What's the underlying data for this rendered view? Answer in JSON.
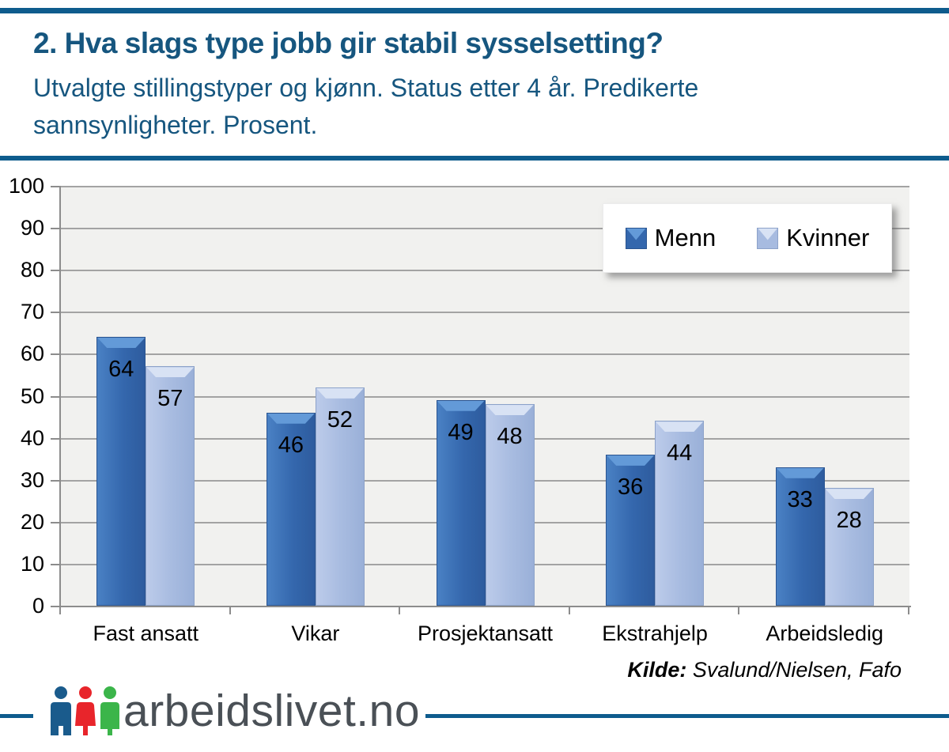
{
  "header": {
    "title": "2. Hva slags type jobb gir stabil sysselsetting?",
    "subtitle_lines": [
      "Utvalgte stillingstyper og kjønn. Status etter 4 år. Predikerte",
      "sannsynligheter. Prosent."
    ]
  },
  "chart_data": {
    "type": "bar",
    "title": "",
    "xlabel": "",
    "ylabel": "",
    "categories": [
      "Fast ansatt",
      "Vikar",
      "Prosjektansatt",
      "Ekstrahjelp",
      "Arbeidsledig"
    ],
    "series": [
      {
        "name": "Menn",
        "values": [
          64,
          46,
          49,
          36,
          33
        ],
        "color": "#3467AD",
        "bevel_color": "#639AD8",
        "edge_color": "#2A5490",
        "gradient_light": "#4A81C4",
        "gradient_dark": "#2E5C9E"
      },
      {
        "name": "Kvinner",
        "values": [
          57,
          52,
          48,
          44,
          28
        ],
        "color": "#A7BBE0",
        "bevel_color": "#D8E2F4",
        "edge_color": "#8CA2C9",
        "gradient_light": "#BCCBEA",
        "gradient_dark": "#9AB0D8"
      }
    ],
    "ylim": [
      0,
      100
    ],
    "ytick_step": 10,
    "grid": true,
    "value_labels": true,
    "legend_position": "top-right",
    "plot_background": "#F1F1EF",
    "gridline_color": "#A3A3A3"
  },
  "legend": {
    "items": [
      "Menn",
      "Kvinner"
    ]
  },
  "source": {
    "label": "Kilde:",
    "text": " Svalund/Nielsen, Fafo"
  },
  "footer": {
    "logo_text": "arbeidslivet.no",
    "logo_people_colors": [
      "#1A5B8C",
      "#E8252B",
      "#3BB54A"
    ],
    "rule_color": "#0E5C8D"
  }
}
